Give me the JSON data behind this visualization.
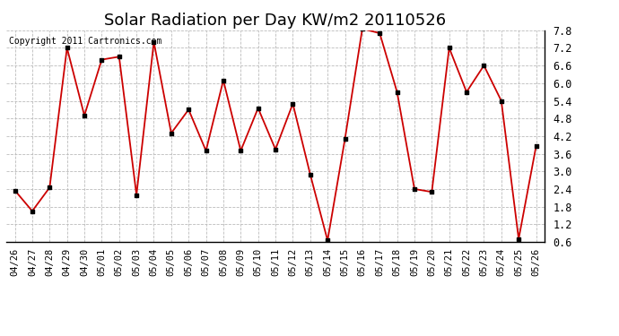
{
  "title": "Solar Radiation per Day KW/m2 20110526",
  "copyright": "Copyright 2011 Cartronics.com",
  "dates": [
    "04/26",
    "04/27",
    "04/28",
    "04/29",
    "04/30",
    "05/01",
    "05/02",
    "05/03",
    "05/04",
    "05/05",
    "05/06",
    "05/07",
    "05/08",
    "05/09",
    "05/10",
    "05/11",
    "05/12",
    "05/13",
    "05/14",
    "05/15",
    "05/16",
    "05/17",
    "05/18",
    "05/19",
    "05/20",
    "05/21",
    "05/22",
    "05/23",
    "05/24",
    "05/25",
    "05/26"
  ],
  "values": [
    2.35,
    1.65,
    2.45,
    7.2,
    4.9,
    6.8,
    6.9,
    2.2,
    7.4,
    4.3,
    5.1,
    3.7,
    6.1,
    3.7,
    5.15,
    3.75,
    5.3,
    2.9,
    0.65,
    4.1,
    7.85,
    7.7,
    5.7,
    2.4,
    2.3,
    7.2,
    5.7,
    6.6,
    5.4,
    0.7,
    3.85
  ],
  "line_color": "#cc0000",
  "marker_color": "#000000",
  "bg_color": "#ffffff",
  "plot_bg_color": "#ffffff",
  "grid_color": "#bbbbbb",
  "ylim": [
    0.6,
    7.8
  ],
  "yticks": [
    0.6,
    1.2,
    1.8,
    2.4,
    3.0,
    3.6,
    4.2,
    4.8,
    5.4,
    6.0,
    6.6,
    7.2,
    7.8
  ],
  "title_fontsize": 13,
  "copyright_fontsize": 7,
  "tick_fontsize": 7.5,
  "ytick_fontsize": 8.5
}
